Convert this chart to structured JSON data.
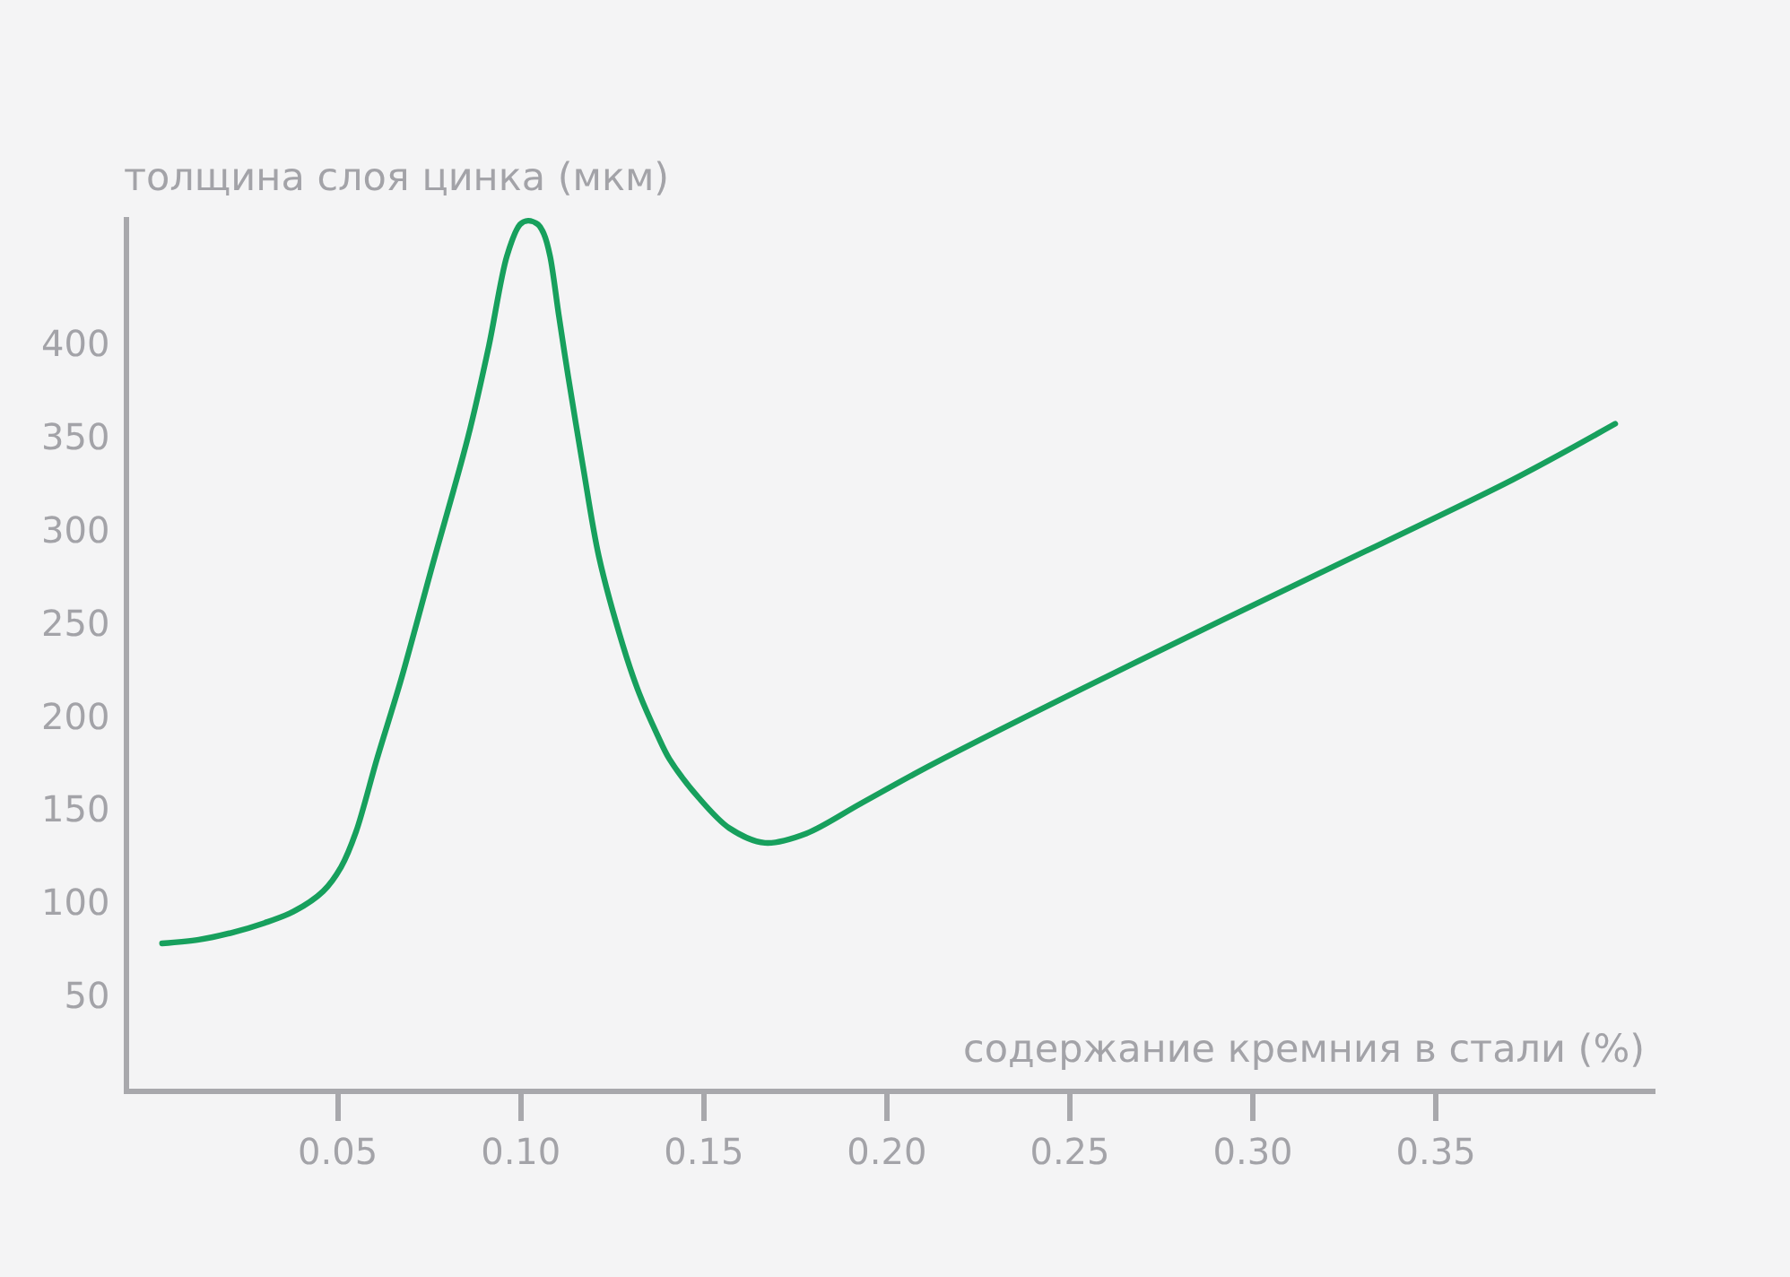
{
  "chart_data": {
    "type": "line",
    "xlabel": "содержание кремния в стали (%)",
    "ylabel": "толщина слоя цинка (мкм)",
    "x": [
      0.002,
      0.012,
      0.0215,
      0.03,
      0.0378,
      0.046,
      0.0509,
      0.055,
      0.0607,
      0.0672,
      0.076,
      0.0856,
      0.0913,
      0.0962,
      0.0998,
      0.102,
      0.1047,
      0.1063,
      0.108,
      0.1104,
      0.1129,
      0.117,
      0.1213,
      0.1279,
      0.1324,
      0.1373,
      0.1406,
      0.1487,
      0.1569,
      0.1667,
      0.178,
      0.1928,
      0.2123,
      0.266,
      0.3185,
      0.371,
      0.399
    ],
    "values": [
      78,
      80,
      84,
      89,
      95,
      106,
      119,
      138,
      177,
      219,
      282,
      350,
      399,
      447,
      464,
      466,
      464,
      459,
      447,
      415,
      383,
      334,
      286,
      238,
      212,
      190,
      177,
      156,
      140,
      132,
      137,
      153,
      174,
      227,
      277,
      327,
      357
    ],
    "color": "#17a05d",
    "line_style": "solid",
    "xlim": [
      -0.007,
      0.41
    ],
    "ylim": [
      0,
      468
    ],
    "xticks": [
      0.05,
      {
        "value": 0.1,
        "label": "0.10"
      },
      0.15,
      {
        "value": 0.2,
        "label": "0.20"
      },
      0.25,
      {
        "value": 0.3,
        "label": "0.30"
      },
      0.35
    ],
    "yticks": [
      50,
      100,
      150,
      200,
      250,
      300,
      350,
      400
    ]
  }
}
